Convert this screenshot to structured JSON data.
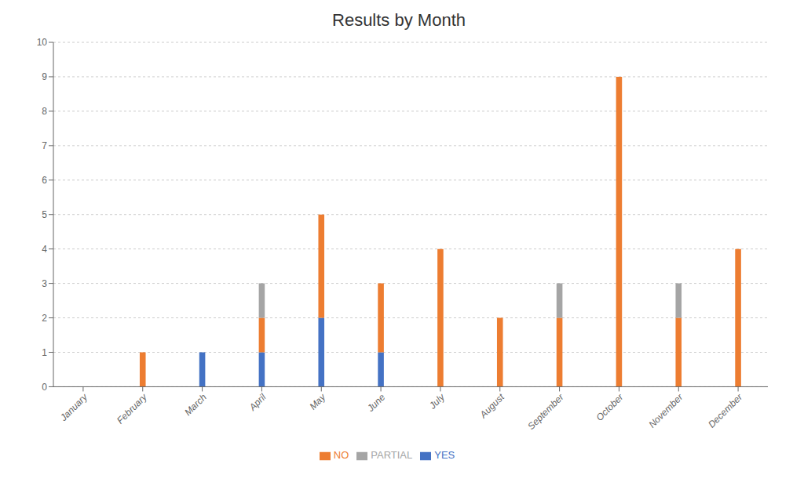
{
  "chart_data": {
    "type": "bar",
    "title": "Results by Month",
    "categories": [
      "January",
      "February",
      "March",
      "April",
      "May",
      "June",
      "July",
      "August",
      "September",
      "October",
      "November",
      "December"
    ],
    "series": [
      {
        "name": "YES",
        "color": "#4472C4",
        "values": [
          0,
          0,
          1,
          1,
          2,
          1,
          0,
          0,
          0,
          0,
          0,
          0
        ]
      },
      {
        "name": "NO",
        "color": "#ED7D31",
        "values": [
          0,
          1,
          0,
          1,
          3,
          2,
          4,
          2,
          2,
          9,
          2,
          4
        ]
      },
      {
        "name": "PARTIAL",
        "color": "#A5A5A5",
        "values": [
          0,
          0,
          0,
          1,
          0,
          0,
          0,
          0,
          1,
          0,
          1,
          0
        ]
      }
    ],
    "stacked": true,
    "ylim": [
      0,
      10
    ],
    "yticks": [
      0,
      1,
      2,
      3,
      4,
      5,
      6,
      7,
      8,
      9,
      10
    ],
    "grid": true,
    "legend": "bottom"
  }
}
